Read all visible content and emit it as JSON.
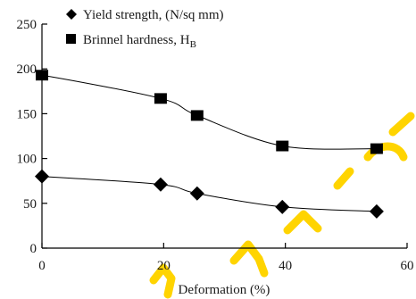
{
  "chart_data": {
    "type": "line",
    "title": "",
    "xlabel": "Deformation (%)",
    "ylabel": "",
    "xlim": [
      0,
      60
    ],
    "ylim": [
      0,
      250
    ],
    "xticks": [
      0,
      20,
      40,
      60
    ],
    "yticks": [
      0,
      50,
      100,
      150,
      200,
      250
    ],
    "grid": false,
    "legend_position": "top-left",
    "series": [
      {
        "name": "Yield strength, (N/sq mm)",
        "marker": "diamond",
        "x": [
          0,
          19.5,
          25.5,
          39.5,
          55
        ],
        "y": [
          80,
          71,
          61,
          46,
          41
        ]
      },
      {
        "name": "Brinnel hardness, H",
        "name_subscript": "B",
        "marker": "square",
        "x": [
          0,
          19.5,
          25.5,
          39.5,
          55
        ],
        "y": [
          193,
          167,
          148,
          114,
          111
        ]
      }
    ]
  }
}
